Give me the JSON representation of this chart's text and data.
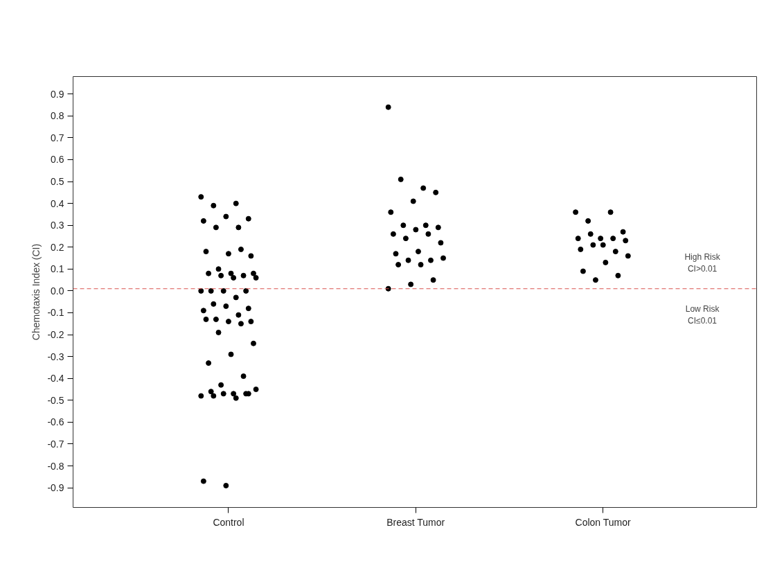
{
  "chart_data": {
    "type": "scatter",
    "ylabel": "Chemotaxis Index (CI)",
    "marker": "circle",
    "grid": false,
    "categories": [
      "Control",
      "Breast Tumor",
      "Colon Tumor"
    ],
    "ylim": [
      -0.99,
      0.98
    ],
    "yticks": [
      -0.9,
      -0.8,
      -0.7,
      -0.6,
      -0.5,
      -0.4,
      -0.3,
      -0.2,
      -0.1,
      {
        "value": 0,
        "label": "0.0"
      },
      0.1,
      0.2,
      0.3,
      0.4,
      0.5,
      0.6,
      0.7,
      0.8,
      0.9
    ],
    "series": [
      {
        "color": "#000000",
        "x": [
          "Control",
          "Control",
          "Control",
          "Control",
          "Control",
          "Control",
          "Control",
          "Control",
          "Control",
          "Control",
          "Control",
          "Control",
          "Control",
          "Control",
          "Control",
          "Control",
          "Control",
          "Control",
          "Control",
          "Control",
          "Control",
          "Control",
          "Control",
          "Control",
          "Control",
          "Control",
          "Control",
          "Control",
          "Control",
          "Control",
          "Control",
          "Control",
          "Control",
          "Control",
          "Control",
          "Control",
          "Control",
          "Control",
          "Control",
          "Control",
          "Control",
          "Control",
          "Control",
          "Control",
          "Control",
          "Control",
          "Control",
          "Control",
          "Control",
          "Control",
          "Control",
          "Control",
          "Breast Tumor",
          "Breast Tumor",
          "Breast Tumor",
          "Breast Tumor",
          "Breast Tumor",
          "Breast Tumor",
          "Breast Tumor",
          "Breast Tumor",
          "Breast Tumor",
          "Breast Tumor",
          "Breast Tumor",
          "Breast Tumor",
          "Breast Tumor",
          "Breast Tumor",
          "Breast Tumor",
          "Breast Tumor",
          "Breast Tumor",
          "Breast Tumor",
          "Breast Tumor",
          "Breast Tumor",
          "Breast Tumor",
          "Breast Tumor",
          "Breast Tumor",
          "Breast Tumor",
          "Colon Tumor",
          "Colon Tumor",
          "Colon Tumor",
          "Colon Tumor",
          "Colon Tumor",
          "Colon Tumor",
          "Colon Tumor",
          "Colon Tumor",
          "Colon Tumor",
          "Colon Tumor",
          "Colon Tumor",
          "Colon Tumor",
          "Colon Tumor",
          "Colon Tumor",
          "Colon Tumor",
          "Colon Tumor",
          "Colon Tumor",
          "Colon Tumor"
        ],
        "values": [
          0.43,
          0.4,
          0.39,
          0.33,
          0.34,
          0.32,
          0.29,
          0.29,
          0.16,
          0.17,
          0.18,
          0.19,
          0.1,
          0.08,
          0.08,
          0.08,
          0.07,
          0.07,
          0.06,
          0.06,
          0.0,
          0.0,
          0.0,
          0.0,
          -0.03,
          -0.06,
          -0.08,
          -0.07,
          -0.09,
          -0.11,
          -0.13,
          -0.14,
          -0.14,
          -0.13,
          -0.15,
          -0.19,
          -0.24,
          -0.29,
          -0.33,
          -0.39,
          -0.43,
          -0.45,
          -0.47,
          -0.46,
          -0.47,
          -0.47,
          -0.48,
          -0.49,
          -0.48,
          -0.47,
          -0.89,
          -0.87,
          0.84,
          0.47,
          0.51,
          0.45,
          0.41,
          0.36,
          0.3,
          0.3,
          0.29,
          0.28,
          0.26,
          0.26,
          0.24,
          0.22,
          0.18,
          0.17,
          0.14,
          0.14,
          0.15,
          0.12,
          0.12,
          0.05,
          0.03,
          0.01,
          0.36,
          0.36,
          0.32,
          0.27,
          0.24,
          0.24,
          0.24,
          0.26,
          0.23,
          0.21,
          0.19,
          0.18,
          0.21,
          0.16,
          0.13,
          0.09,
          0.07,
          0.05
        ]
      }
    ],
    "ref_lines": [
      {
        "axis": "y",
        "value": 0.01,
        "color": "#d9534f",
        "line_style": "dashed"
      }
    ],
    "annotations": [
      "High Risk\nCI>0.01",
      "Low Risk\nCI≤0.01"
    ]
  }
}
